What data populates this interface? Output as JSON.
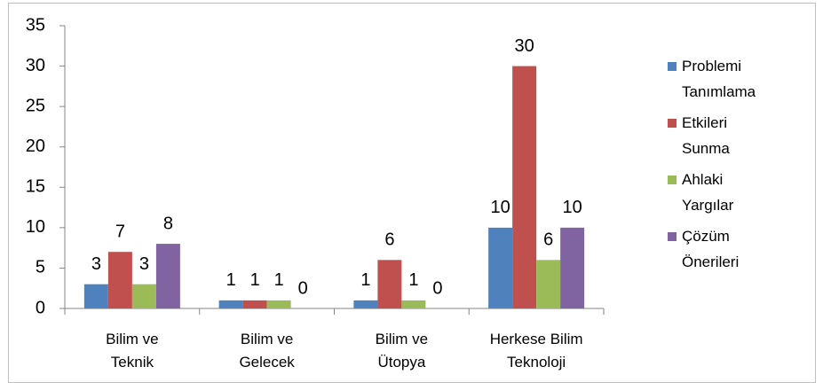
{
  "chart_data": {
    "type": "bar",
    "categories": [
      "Bilim ve\nTeknik",
      "Bilim ve\nGelecek",
      "Bilim ve\nÜtopya",
      "Herkese Bilim\nTeknoloji"
    ],
    "series": [
      {
        "name": "Problemi Tanımlama",
        "color": "#4f81bd",
        "values": [
          3,
          1,
          1,
          10
        ]
      },
      {
        "name": "Etkileri Sunma",
        "color": "#c0504d",
        "values": [
          7,
          1,
          6,
          30
        ]
      },
      {
        "name": "Ahlaki Yargılar",
        "color": "#9bbb59",
        "values": [
          3,
          1,
          1,
          6
        ]
      },
      {
        "name": "Çözüm Önerileri",
        "color": "#8064a2",
        "values": [
          8,
          0,
          0,
          10
        ]
      }
    ],
    "ylim": [
      0,
      35
    ],
    "yticks": [
      0,
      5,
      10,
      15,
      20,
      25,
      30,
      35
    ],
    "grid": false,
    "legend": "right"
  }
}
